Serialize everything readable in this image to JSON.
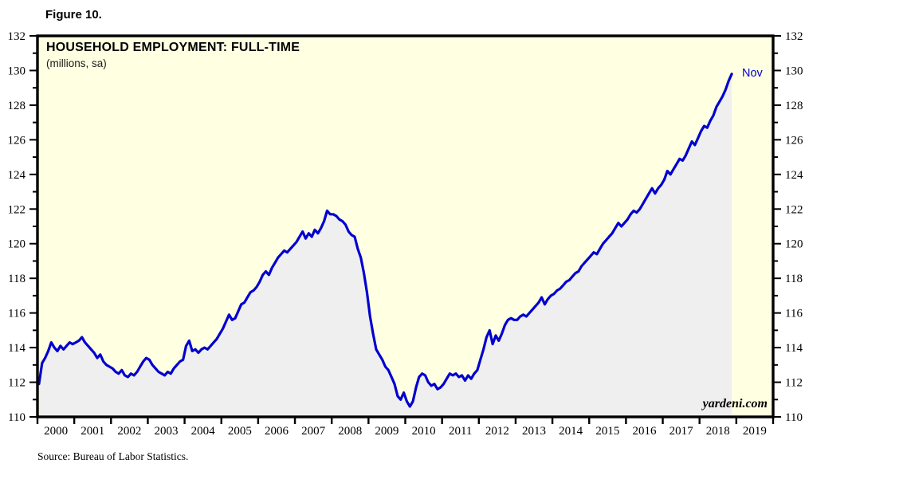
{
  "figure_label": "Figure 10.",
  "chart_data": {
    "type": "line",
    "title": "HOUSEHOLD EMPLOYMENT: FULL-TIME",
    "subtitle": "(millions, sa)",
    "xlabel": "",
    "ylabel": "",
    "ylim": [
      110,
      132
    ],
    "y_major_tick_labels": [
      110,
      112,
      114,
      116,
      118,
      120,
      122,
      124,
      126,
      128,
      130,
      132
    ],
    "y_minor_tick_step": 1,
    "y_axis_labels_both_sides": true,
    "x_tick_year_labels": [
      "2000",
      "2001",
      "2002",
      "2003",
      "2004",
      "2005",
      "2006",
      "2007",
      "2008",
      "2009",
      "2010",
      "2011",
      "2012",
      "2013",
      "2014",
      "2015",
      "2016",
      "2017",
      "2018",
      "2019"
    ],
    "x_axis_start_year": 2000,
    "x_axis_end_year_exclusive": 2020,
    "grid": "off",
    "legend": "none",
    "last_point_annotation": "Nov",
    "watermark": "yardeni.com",
    "source": "Source: Bureau of Labor Statistics.",
    "series": [
      {
        "name": "Household employment, full-time (millions, seasonally adjusted)",
        "frequency": "monthly",
        "start": "2000-01",
        "end": "2018-11",
        "values": [
          111.9,
          113.1,
          113.4,
          113.8,
          114.3,
          114.0,
          113.8,
          114.1,
          113.9,
          114.1,
          114.3,
          114.2,
          114.3,
          114.4,
          114.6,
          114.3,
          114.1,
          113.9,
          113.7,
          113.4,
          113.6,
          113.2,
          113.0,
          112.9,
          112.8,
          112.6,
          112.5,
          112.7,
          112.4,
          112.3,
          112.5,
          112.4,
          112.6,
          112.9,
          113.2,
          113.4,
          113.3,
          113.0,
          112.8,
          112.6,
          112.5,
          112.4,
          112.6,
          112.5,
          112.8,
          113.0,
          113.2,
          113.3,
          114.1,
          114.4,
          113.8,
          113.9,
          113.7,
          113.9,
          114.0,
          113.9,
          114.1,
          114.3,
          114.5,
          114.8,
          115.1,
          115.5,
          115.9,
          115.6,
          115.7,
          116.1,
          116.5,
          116.6,
          116.9,
          117.2,
          117.3,
          117.5,
          117.8,
          118.2,
          118.4,
          118.2,
          118.6,
          118.9,
          119.2,
          119.4,
          119.6,
          119.5,
          119.7,
          119.9,
          120.1,
          120.4,
          120.7,
          120.3,
          120.6,
          120.4,
          120.8,
          120.6,
          120.9,
          121.3,
          121.9,
          121.7,
          121.7,
          121.6,
          121.4,
          121.3,
          121.1,
          120.7,
          120.5,
          120.4,
          119.7,
          119.2,
          118.3,
          117.2,
          115.8,
          114.8,
          113.9,
          113.6,
          113.3,
          112.9,
          112.7,
          112.3,
          111.9,
          111.2,
          111.0,
          111.4,
          110.9,
          110.6,
          110.9,
          111.7,
          112.3,
          112.5,
          112.4,
          112.0,
          111.8,
          111.9,
          111.6,
          111.7,
          111.9,
          112.2,
          112.5,
          112.4,
          112.5,
          112.3,
          112.4,
          112.1,
          112.4,
          112.2,
          112.5,
          112.7,
          113.3,
          113.9,
          114.6,
          115.0,
          114.2,
          114.7,
          114.4,
          114.8,
          115.3,
          115.6,
          115.7,
          115.6,
          115.6,
          115.8,
          115.9,
          115.8,
          116.0,
          116.2,
          116.4,
          116.6,
          116.9,
          116.5,
          116.8,
          117.0,
          117.1,
          117.3,
          117.4,
          117.6,
          117.8,
          117.9,
          118.1,
          118.3,
          118.4,
          118.7,
          118.9,
          119.1,
          119.3,
          119.5,
          119.4,
          119.7,
          120.0,
          120.2,
          120.4,
          120.6,
          120.9,
          121.2,
          121.0,
          121.2,
          121.4,
          121.7,
          121.9,
          121.8,
          122.0,
          122.3,
          122.6,
          122.9,
          123.2,
          122.9,
          123.2,
          123.4,
          123.7,
          124.2,
          124.0,
          124.3,
          124.6,
          124.9,
          124.8,
          125.1,
          125.5,
          125.9,
          125.7,
          126.1,
          126.5,
          126.8,
          126.7,
          127.1,
          127.4,
          127.9,
          128.2,
          128.5,
          128.9,
          129.4,
          129.8
        ]
      }
    ],
    "colors": {
      "line": "#0000d0",
      "area_fill": "#efefef",
      "plot_background": "#ffffe2",
      "frame": "#000000",
      "text": "#000000",
      "annotation": "#0000d0"
    }
  }
}
